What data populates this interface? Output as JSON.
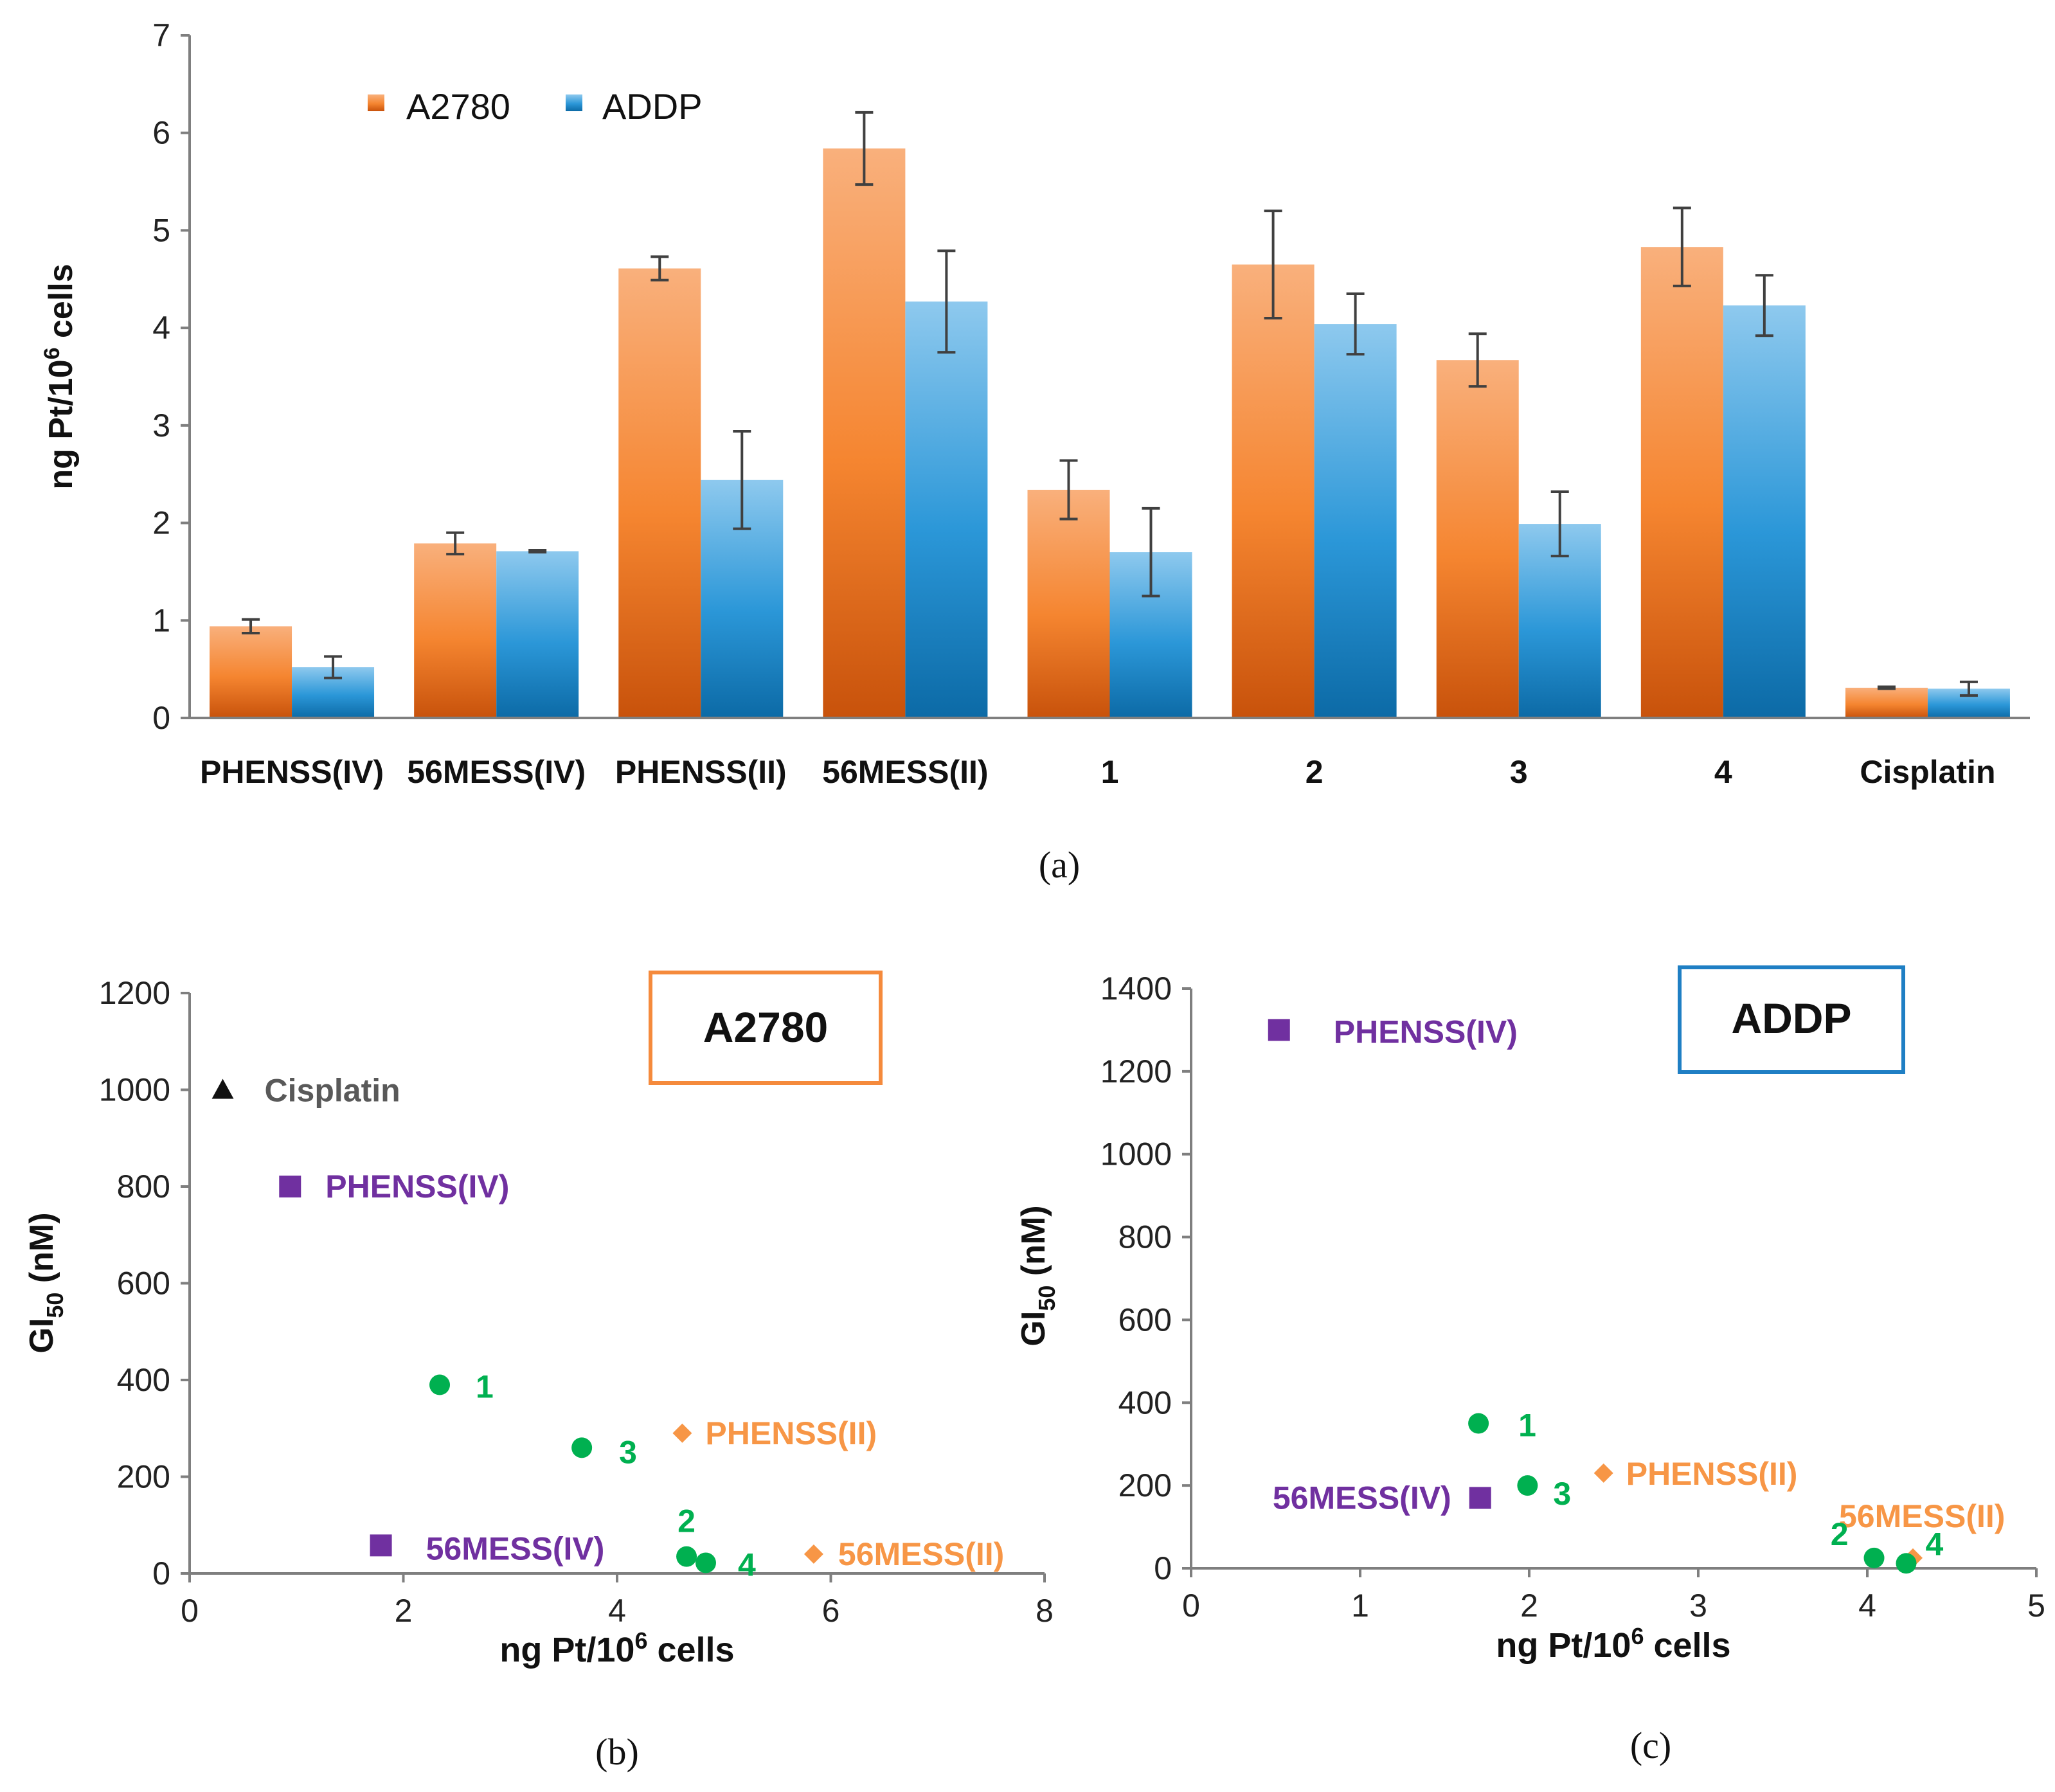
{
  "chart_data": [
    {
      "type": "bar",
      "caption": "(a)",
      "ylabel_main": "ng Pt/10",
      "ylabel_sup": "6",
      "ylabel_tail": " cells",
      "ylim": [
        0,
        7
      ],
      "yticks": [
        0,
        1,
        2,
        3,
        4,
        5,
        6,
        7
      ],
      "categories": [
        "PHENSS(IV)",
        "56MESS(IV)",
        "PHENSS(II)",
        "56MESS(II)",
        "1",
        "2",
        "3",
        "4",
        "Cisplatin"
      ],
      "series": [
        {
          "name": "A2780",
          "color": "#f07a2a",
          "values": [
            0.94,
            1.79,
            4.61,
            5.84,
            2.34,
            4.65,
            3.67,
            4.83,
            0.31
          ],
          "errors": [
            0.07,
            0.11,
            0.12,
            0.37,
            0.3,
            0.55,
            0.27,
            0.4,
            0.01
          ]
        },
        {
          "name": "ADDP",
          "color": "#1f8fd1",
          "values": [
            0.52,
            1.71,
            2.44,
            4.27,
            1.7,
            4.04,
            1.99,
            4.23,
            0.3
          ],
          "errors": [
            0.11,
            0.01,
            0.5,
            0.52,
            0.45,
            0.31,
            0.33,
            0.31,
            0.07
          ]
        }
      ]
    },
    {
      "type": "scatter",
      "caption": "(b)",
      "title": "A2780",
      "xlabel_main": "ng Pt/10",
      "xlabel_sup": "6",
      "xlabel_tail": " cells",
      "ylabel_main": "GI",
      "ylabel_sub": "50",
      "ylabel_tail": " (nM)",
      "xlim": [
        0,
        8
      ],
      "ylim": [
        0,
        1200
      ],
      "xticks": [
        0,
        2,
        4,
        6,
        8
      ],
      "yticks": [
        0,
        200,
        400,
        600,
        800,
        1000,
        1200
      ],
      "points": [
        {
          "label": "Cisplatin",
          "x": 0.31,
          "y": 1000,
          "marker": "triangle",
          "color": "#111111",
          "label_color": "#595959"
        },
        {
          "label": "PHENSS(IV)",
          "x": 0.94,
          "y": 800,
          "marker": "square",
          "color": "#7030a0",
          "label_color": "#7030a0"
        },
        {
          "label": "1",
          "x": 2.34,
          "y": 390,
          "marker": "circle",
          "color": "#00b050",
          "label_color": "#00b050"
        },
        {
          "label": "3",
          "x": 3.67,
          "y": 260,
          "marker": "circle",
          "color": "#00b050",
          "label_color": "#00b050"
        },
        {
          "label": "PHENSS(II)",
          "x": 4.61,
          "y": 290,
          "marker": "diamond",
          "color": "#f79646",
          "label_color": "#f79646"
        },
        {
          "label": "56MESS(IV)",
          "x": 1.79,
          "y": 58,
          "marker": "square",
          "color": "#7030a0",
          "label_color": "#7030a0"
        },
        {
          "label": "2",
          "x": 4.65,
          "y": 35,
          "marker": "circle",
          "color": "#00b050",
          "label_color": "#00b050"
        },
        {
          "label": "4",
          "x": 4.83,
          "y": 22,
          "marker": "circle",
          "color": "#00b050",
          "label_color": "#00b050"
        },
        {
          "label": "56MESS(II)",
          "x": 5.84,
          "y": 40,
          "marker": "diamond",
          "color": "#f79646",
          "label_color": "#f79646"
        }
      ]
    },
    {
      "type": "scatter",
      "caption": "(c)",
      "title": "ADDP",
      "xlabel_main": "ng Pt/10",
      "xlabel_sup": "6",
      "xlabel_tail": " cells",
      "ylabel_main": "GI",
      "ylabel_sub": "50",
      "ylabel_tail": " (nM)",
      "xlim": [
        0,
        5
      ],
      "ylim": [
        0,
        1400
      ],
      "xticks": [
        0,
        1,
        2,
        3,
        4,
        5
      ],
      "yticks": [
        0,
        200,
        400,
        600,
        800,
        1000,
        1200,
        1400
      ],
      "points": [
        {
          "label": "PHENSS(IV)",
          "x": 0.52,
          "y": 1300,
          "marker": "square",
          "color": "#7030a0",
          "label_color": "#7030a0"
        },
        {
          "label": "1",
          "x": 1.7,
          "y": 350,
          "marker": "circle",
          "color": "#00b050",
          "label_color": "#00b050"
        },
        {
          "label": "56MESS(IV)",
          "x": 1.71,
          "y": 170,
          "marker": "square",
          "color": "#7030a0",
          "label_color": "#7030a0"
        },
        {
          "label": "3",
          "x": 1.99,
          "y": 200,
          "marker": "circle",
          "color": "#00b050",
          "label_color": "#00b050"
        },
        {
          "label": "PHENSS(II)",
          "x": 2.44,
          "y": 230,
          "marker": "diamond",
          "color": "#f79646",
          "label_color": "#f79646"
        },
        {
          "label": "56MESS(II)",
          "x": 4.27,
          "y": 25,
          "marker": "diamond",
          "color": "#f79646",
          "label_color": "#f79646"
        },
        {
          "label": "2",
          "x": 4.04,
          "y": 25,
          "marker": "circle",
          "color": "#00b050",
          "label_color": "#00b050"
        },
        {
          "label": "4",
          "x": 4.23,
          "y": 12,
          "marker": "circle",
          "color": "#00b050",
          "label_color": "#00b050"
        }
      ]
    }
  ]
}
